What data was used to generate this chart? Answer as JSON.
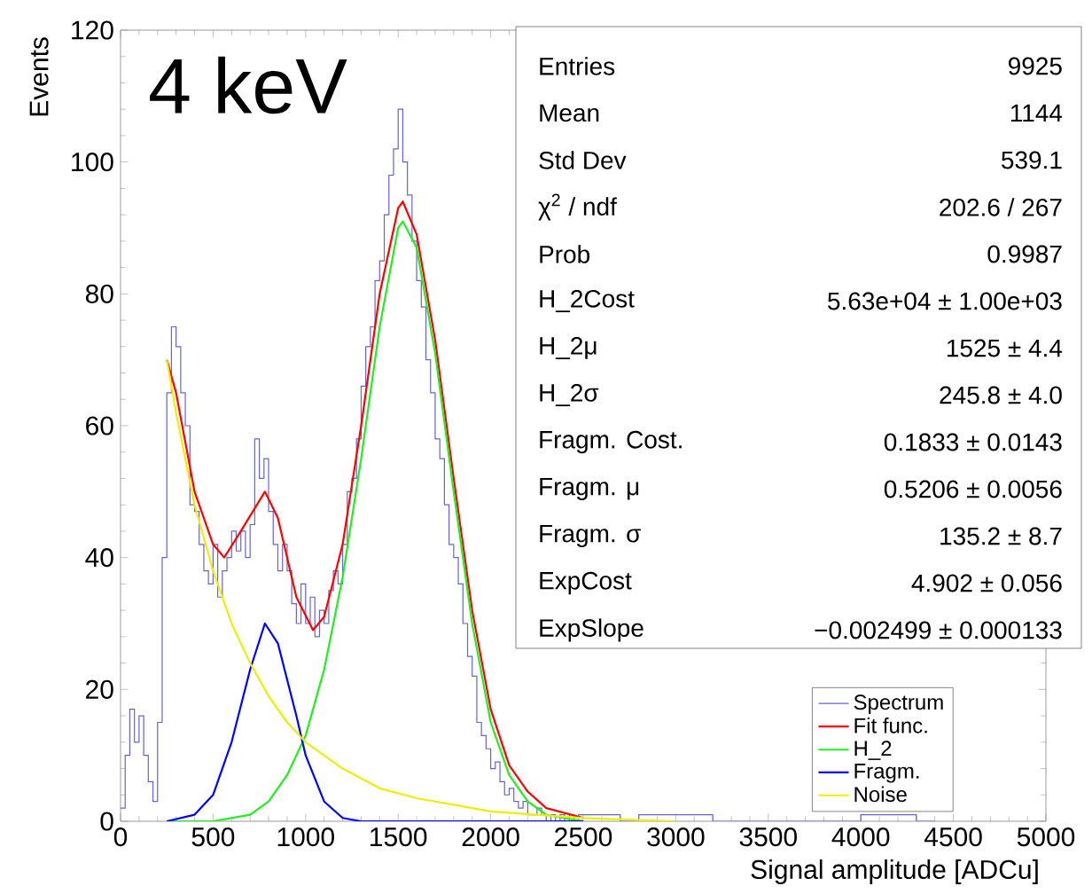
{
  "chart_data": {
    "type": "step",
    "xlabel": "Signal amplitude [ADCu]",
    "ylabel": "Events",
    "xlim": [
      0,
      5000
    ],
    "ylim": [
      0,
      120
    ],
    "xticks": [
      0,
      500,
      1000,
      1500,
      2000,
      2500,
      3000,
      3500,
      4000,
      4500,
      5000
    ],
    "yticks": [
      0,
      20,
      40,
      60,
      80,
      100,
      120
    ],
    "legend": "bottom right",
    "series": [
      {
        "name": "Spectrum",
        "color": "#6666cc",
        "x": [
          0,
          25,
          50,
          75,
          100,
          125,
          150,
          175,
          200,
          225,
          250,
          275,
          300,
          325,
          350,
          375,
          400,
          425,
          450,
          475,
          500,
          525,
          550,
          575,
          600,
          625,
          650,
          675,
          700,
          725,
          750,
          775,
          800,
          825,
          850,
          875,
          900,
          925,
          950,
          975,
          1000,
          1025,
          1050,
          1075,
          1100,
          1125,
          1150,
          1175,
          1200,
          1225,
          1250,
          1275,
          1300,
          1325,
          1350,
          1375,
          1400,
          1425,
          1450,
          1475,
          1500,
          1525,
          1550,
          1575,
          1600,
          1625,
          1650,
          1675,
          1700,
          1725,
          1750,
          1775,
          1800,
          1825,
          1850,
          1875,
          1900,
          1925,
          1950,
          1975,
          2000,
          2025,
          2050,
          2075,
          2100,
          2125,
          2150,
          2175,
          2200,
          2225,
          2250,
          2275,
          2300,
          2325,
          2350,
          2375,
          2400,
          2425,
          2450,
          2475,
          2500,
          2600,
          2700,
          2800,
          2900,
          3000,
          3100,
          3200,
          3300,
          3400,
          3500,
          3600,
          3700,
          3800,
          3900,
          4000,
          4100,
          4200,
          4300,
          4400
        ],
        "values": [
          2,
          10,
          17,
          12,
          16,
          10,
          6,
          3,
          15,
          40,
          65,
          75,
          72,
          65,
          60,
          48,
          47,
          42,
          38,
          36,
          42,
          34,
          38,
          40,
          44,
          41,
          44,
          40,
          45,
          58,
          52,
          55,
          47,
          42,
          38,
          42,
          38,
          33,
          30,
          36,
          30,
          34,
          28,
          32,
          30,
          35,
          38,
          36,
          42,
          50,
          52,
          58,
          66,
          72,
          75,
          82,
          85,
          92,
          98,
          102,
          108,
          100,
          95,
          88,
          82,
          78,
          70,
          65,
          58,
          55,
          48,
          42,
          40,
          36,
          30,
          25,
          22,
          15,
          13,
          11,
          8,
          9,
          6,
          4,
          5,
          3,
          2,
          3,
          1,
          1,
          2,
          1,
          0,
          1,
          0,
          1,
          0,
          1,
          0,
          1,
          1,
          1,
          0,
          1,
          1,
          1,
          1,
          0,
          0,
          0,
          0,
          0,
          0,
          0,
          0,
          1,
          1,
          1,
          0,
          0
        ]
      },
      {
        "name": "Fit func.",
        "type": "line",
        "color": "#ff0000",
        "x": [
          250,
          300,
          400,
          500,
          560,
          650,
          780,
          850,
          950,
          1040,
          1100,
          1200,
          1300,
          1400,
          1500,
          1525,
          1600,
          1700,
          1800,
          1900,
          2000,
          2100,
          2200,
          2300,
          2500
        ],
        "values": [
          70,
          65,
          50,
          42,
          40,
          44,
          50,
          46,
          34,
          29,
          31,
          42,
          60,
          80,
          93,
          94,
          89,
          73,
          52,
          32,
          17,
          8.5,
          4.5,
          2,
          0.5
        ]
      },
      {
        "name": "H_2",
        "type": "line",
        "color": "#22ee22",
        "x": [
          250,
          500,
          700,
          800,
          900,
          1000,
          1100,
          1200,
          1300,
          1400,
          1500,
          1525,
          1600,
          1700,
          1800,
          1900,
          2000,
          2100,
          2200,
          2300,
          2500
        ],
        "values": [
          0,
          0,
          1,
          3,
          7,
          13,
          23,
          37,
          55,
          75,
          90,
          91,
          87,
          71,
          50,
          30,
          15,
          7,
          3,
          1,
          0
        ]
      },
      {
        "name": "Fragm.",
        "type": "line",
        "color": "#0000ff",
        "x": [
          250,
          400,
          500,
          600,
          700,
          780,
          850,
          950,
          1000,
          1100,
          1200,
          1300,
          2500
        ],
        "values": [
          0,
          1,
          4,
          12,
          23,
          30,
          27,
          16,
          10,
          3,
          0.5,
          0,
          0
        ]
      },
      {
        "name": "Noise",
        "type": "line",
        "color": "#eeee00",
        "x": [
          250,
          300,
          400,
          500,
          600,
          700,
          800,
          900,
          1000,
          1200,
          1400,
          1600,
          1800,
          2000,
          2500,
          3000
        ],
        "values": [
          70,
          62,
          48,
          38,
          30,
          24,
          19,
          15,
          12,
          8,
          5,
          3.5,
          2.5,
          1.5,
          0.5,
          0
        ]
      }
    ],
    "annotations": [
      "4 keV",
      "Entries",
      "9925",
      "Mean",
      "1144",
      "Std Dev",
      "539.1",
      "χ$^{2}$ / ndf",
      "202.6 / 267",
      "Prob",
      "0.9987",
      "H_2Cost",
      "5.63e+04 ± 1.00e+03",
      "H_2μ",
      "1525 ± 4.4",
      "H_2σ",
      "245.8 ± 4.0",
      "Fragm. Cost.",
      "0.1833 ± 0.0143",
      "Fragm. μ",
      "0.5206 ± 0.0056",
      "Fragm. σ",
      "135.2 ± 8.7",
      "ExpCost",
      "4.902 ± 0.056",
      "ExpSlope",
      "−0.002499 ± 0.000133"
    ]
  }
}
